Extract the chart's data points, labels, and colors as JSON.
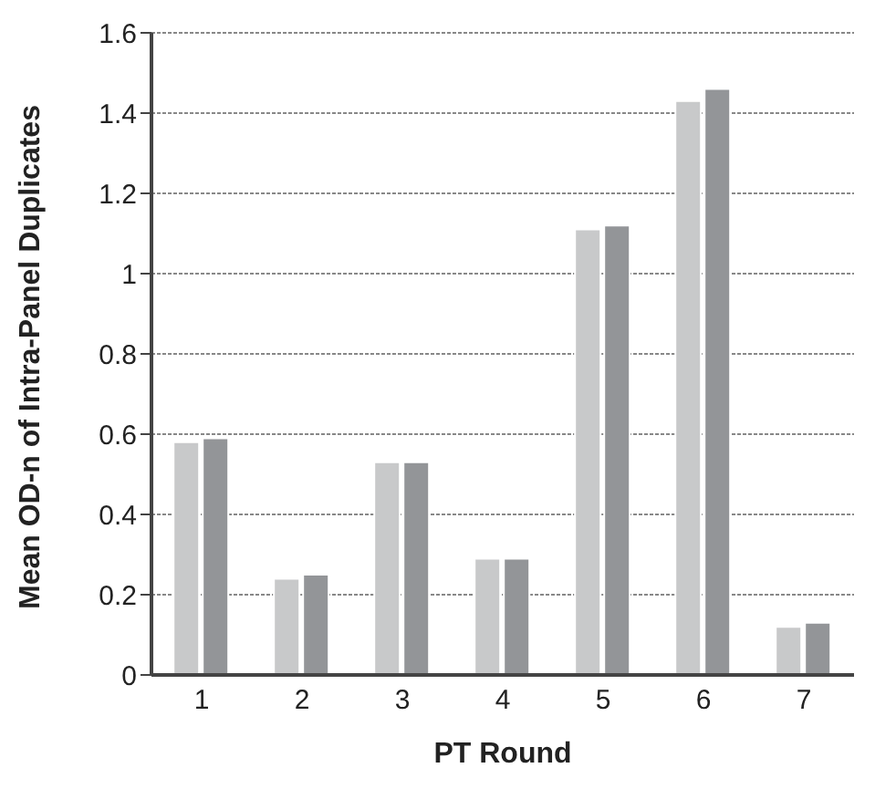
{
  "chart_data": {
    "type": "bar",
    "xlabel": "PT Round",
    "ylabel": "Mean OD-n of Intra-Panel Duplicates",
    "categories": [
      "1",
      "2",
      "3",
      "4",
      "5",
      "6",
      "7"
    ],
    "series": [
      {
        "color": "#c8c9ca",
        "values": [
          0.58,
          0.24,
          0.53,
          0.29,
          1.11,
          1.43,
          0.12
        ]
      },
      {
        "color": "#939598",
        "values": [
          0.59,
          0.25,
          0.53,
          0.29,
          1.12,
          1.46,
          0.13
        ]
      }
    ],
    "ylim": [
      0,
      1.6
    ],
    "yticks": [
      0,
      0.2,
      0.4,
      0.6,
      0.8,
      1,
      1.2,
      1.4,
      1.6
    ],
    "grid": "y",
    "legend": false
  }
}
